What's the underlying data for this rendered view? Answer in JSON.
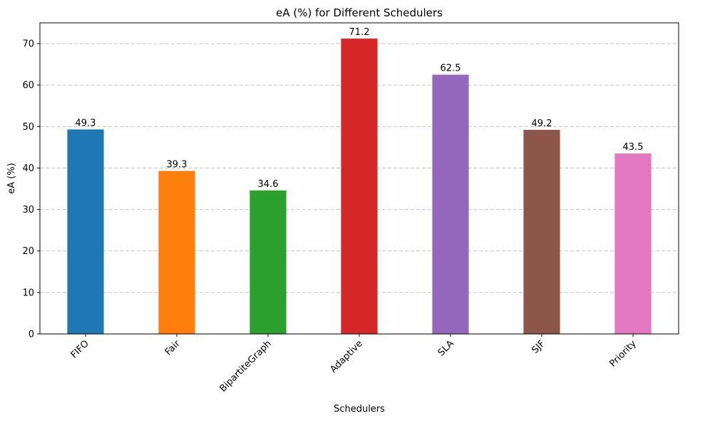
{
  "chart_data": {
    "type": "bar",
    "title": "eA (%) for Different Schedulers",
    "xlabel": "Schedulers",
    "ylabel": "eA (%)",
    "categories": [
      "FIFO",
      "Fair",
      "BipartiteGraph",
      "Adaptive",
      "SLA",
      "SJF",
      "Priority"
    ],
    "values": [
      49.3,
      39.3,
      34.6,
      71.2,
      62.5,
      49.2,
      43.5
    ],
    "data_labels": [
      "49.3",
      "39.3",
      "34.6",
      "71.2",
      "62.5",
      "49.2",
      "43.5"
    ],
    "colors": [
      "#1f77b4",
      "#ff7f0e",
      "#2ca02c",
      "#d62728",
      "#9467bd",
      "#8c564b",
      "#e377c2"
    ],
    "ylim": [
      0,
      75
    ],
    "yticks": [
      0,
      10,
      20,
      30,
      40,
      50,
      60,
      70
    ],
    "grid": "y-dashed",
    "legend": "none"
  }
}
